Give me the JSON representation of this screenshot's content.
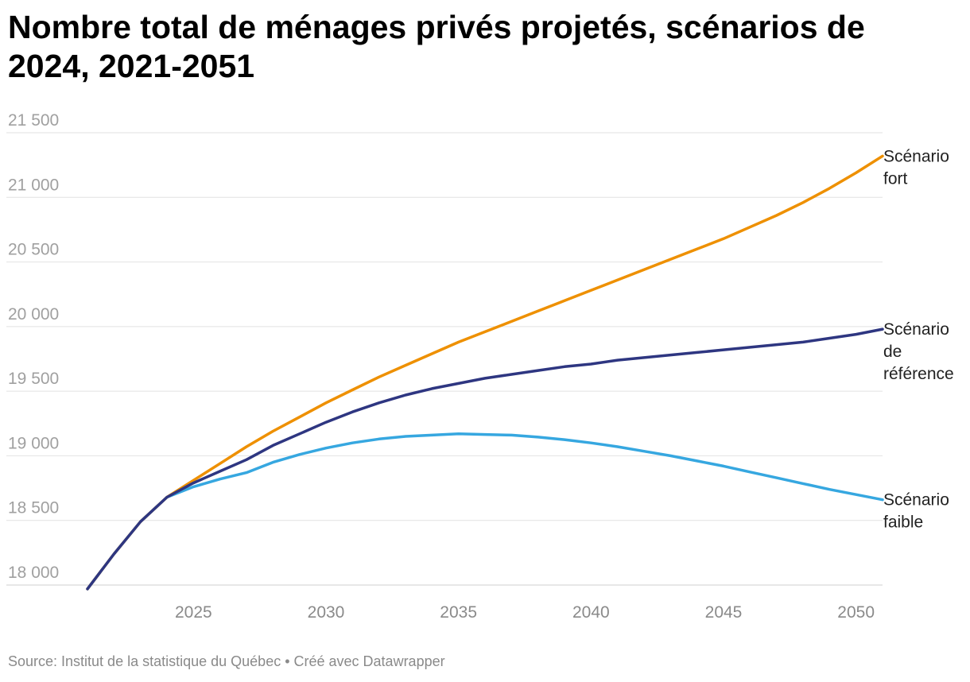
{
  "title": "Nombre total de ménages privés projetés, scénarios de 2024, 2021-2051",
  "source_text": "Source: Institut de la statistique du Québec • Créé avec Datawrapper",
  "chart_data": {
    "type": "line",
    "title": "Nombre total de ménages privés projetés, scénarios de 2024, 2021-2051",
    "xlabel": "",
    "ylabel": "",
    "xlim": [
      2021,
      2051
    ],
    "ylim": [
      18000,
      21500
    ],
    "x_ticks": [
      2025,
      2030,
      2035,
      2040,
      2045,
      2050
    ],
    "y_ticks": [
      18000,
      18500,
      19000,
      19500,
      20000,
      20500,
      21000,
      21500
    ],
    "y_tick_labels": [
      "18 000",
      "18 500",
      "19 000",
      "19 500",
      "20 000",
      "20 500",
      "21 000",
      "21 500"
    ],
    "grid": true,
    "legend": "direct labels at right end of lines",
    "x": [
      2021,
      2022,
      2023,
      2024,
      2025,
      2026,
      2027,
      2028,
      2029,
      2030,
      2031,
      2032,
      2033,
      2034,
      2035,
      2036,
      2037,
      2038,
      2039,
      2040,
      2041,
      2042,
      2043,
      2044,
      2045,
      2046,
      2047,
      2048,
      2049,
      2050,
      2051
    ],
    "series": [
      {
        "name": "Scénario fort",
        "label_lines": [
          "Scénario",
          "fort"
        ],
        "color": "#EE9000",
        "values": [
          17970,
          18240,
          18490,
          18680,
          18810,
          18940,
          19070,
          19190,
          19300,
          19410,
          19510,
          19610,
          19700,
          19790,
          19880,
          19960,
          20040,
          20120,
          20200,
          20280,
          20360,
          20440,
          20520,
          20600,
          20680,
          20770,
          20860,
          20960,
          21070,
          21190,
          21320
        ]
      },
      {
        "name": "Scénario de référence",
        "label_lines": [
          "Scénario",
          "de",
          "référence"
        ],
        "color": "#2E3681",
        "values": [
          17970,
          18240,
          18490,
          18680,
          18790,
          18880,
          18970,
          19080,
          19170,
          19260,
          19340,
          19410,
          19470,
          19520,
          19560,
          19600,
          19630,
          19660,
          19690,
          19710,
          19740,
          19760,
          19780,
          19800,
          19820,
          19840,
          19860,
          19880,
          19910,
          19940,
          19980
        ]
      },
      {
        "name": "Scénario faible",
        "label_lines": [
          "Scénario",
          "faible"
        ],
        "color": "#36A7E0",
        "values": [
          17970,
          18240,
          18490,
          18680,
          18760,
          18820,
          18870,
          18950,
          19010,
          19060,
          19100,
          19130,
          19150,
          19160,
          19170,
          19165,
          19160,
          19145,
          19125,
          19100,
          19070,
          19035,
          19000,
          18960,
          18920,
          18875,
          18830,
          18785,
          18740,
          18700,
          18660
        ]
      }
    ]
  }
}
